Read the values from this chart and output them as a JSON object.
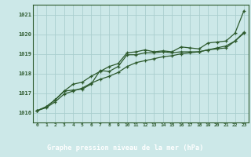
{
  "title": "Graphe pression niveau de la mer (hPa)",
  "x_values": [
    0,
    1,
    2,
    3,
    4,
    5,
    6,
    7,
    8,
    9,
    10,
    11,
    12,
    13,
    14,
    15,
    16,
    17,
    18,
    19,
    20,
    21,
    22,
    23
  ],
  "line1": [
    1016.1,
    1016.3,
    1016.65,
    1017.1,
    1017.45,
    1017.55,
    1017.85,
    1018.1,
    1018.35,
    1018.5,
    1019.05,
    1019.1,
    1019.2,
    1019.1,
    1019.15,
    1019.1,
    1019.35,
    1019.3,
    1019.25,
    1019.55,
    1019.6,
    1019.65,
    1020.05,
    1021.2
  ],
  "line2": [
    1016.1,
    1016.3,
    1016.65,
    1017.1,
    1017.15,
    1017.2,
    1017.45,
    1018.15,
    1018.1,
    1018.35,
    1018.95,
    1018.95,
    1019.05,
    1019.05,
    1019.1,
    1019.05,
    1019.1,
    1019.1,
    1019.1,
    1019.2,
    1019.25,
    1019.3,
    1019.65,
    1020.05
  ],
  "line3": [
    1016.1,
    1016.25,
    1016.55,
    1016.95,
    1017.1,
    1017.25,
    1017.5,
    1017.7,
    1017.85,
    1018.05,
    1018.35,
    1018.55,
    1018.65,
    1018.75,
    1018.85,
    1018.9,
    1019.0,
    1019.05,
    1019.1,
    1019.2,
    1019.3,
    1019.4,
    1019.65,
    1020.1
  ],
  "bg_color": "#cce8e8",
  "line_color": "#2d5a2d",
  "grid_color": "#aacece",
  "title_color": "#1a3a1a",
  "ylim": [
    1015.5,
    1021.5
  ],
  "yticks": [
    1016,
    1017,
    1018,
    1019,
    1020,
    1021
  ],
  "xlim": [
    -0.5,
    23.5
  ],
  "bottom_bg": "#4a7a4a"
}
